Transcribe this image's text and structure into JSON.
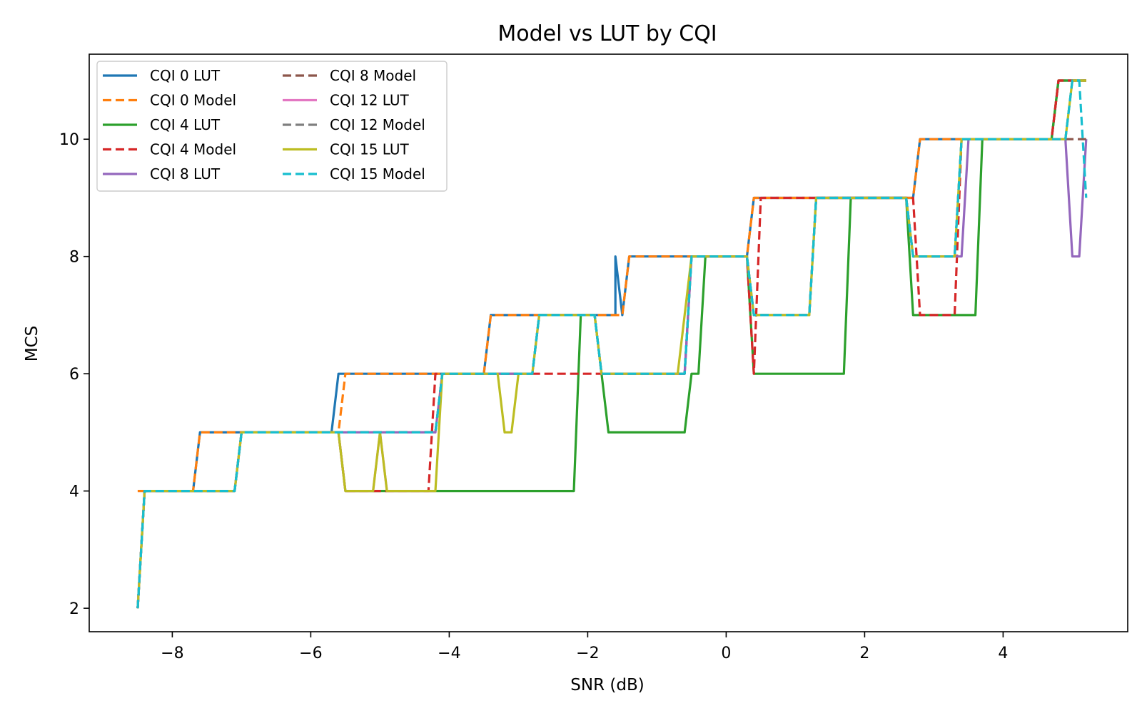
{
  "chart_data": {
    "type": "line",
    "title": "Model vs LUT by CQI",
    "xlabel": "SNR (dB)",
    "ylabel": "MCS",
    "xlim": [
      -9.2,
      5.8
    ],
    "ylim": [
      1.6,
      11.45
    ],
    "xticks": [
      {
        "value": -8,
        "label": "−8"
      },
      {
        "value": -6,
        "label": "−6"
      },
      {
        "value": -4,
        "label": "−4"
      },
      {
        "value": -2,
        "label": "−2"
      },
      {
        "value": 0,
        "label": "0"
      },
      {
        "value": 2,
        "label": "2"
      },
      {
        "value": 4,
        "label": "4"
      }
    ],
    "yticks": [
      {
        "value": 2,
        "label": "2"
      },
      {
        "value": 4,
        "label": "4"
      },
      {
        "value": 6,
        "label": "6"
      },
      {
        "value": 8,
        "label": "8"
      },
      {
        "value": 10,
        "label": "10"
      }
    ],
    "grid": false,
    "legend_position": "upper-left",
    "legend_columns": 2,
    "series": [
      {
        "name": "CQI 0 LUT",
        "color": "#1f77b4",
        "dashed": false,
        "points": [
          [
            -8.5,
            2
          ],
          [
            -8.4,
            4
          ],
          [
            -7.7,
            4
          ],
          [
            -7.6,
            5
          ],
          [
            -5.7,
            5
          ],
          [
            -5.6,
            6
          ],
          [
            -3.5,
            6
          ],
          [
            -3.4,
            7
          ],
          [
            -1.6,
            7
          ],
          [
            -1.6,
            8
          ],
          [
            -1.5,
            7
          ],
          [
            -1.4,
            8
          ],
          [
            0.3,
            8
          ],
          [
            0.4,
            9
          ],
          [
            2.7,
            9
          ],
          [
            2.8,
            10
          ],
          [
            4.7,
            10
          ],
          [
            4.8,
            11
          ],
          [
            5.2,
            11
          ]
        ]
      },
      {
        "name": "CQI 0 Model",
        "color": "#ff7f0e",
        "dashed": true,
        "points": [
          [
            -8.5,
            4
          ],
          [
            -7.7,
            4
          ],
          [
            -7.6,
            5
          ],
          [
            -5.6,
            5
          ],
          [
            -5.5,
            6
          ],
          [
            -3.5,
            6
          ],
          [
            -3.4,
            7
          ],
          [
            -1.5,
            7
          ],
          [
            -1.4,
            8
          ],
          [
            0.3,
            8
          ],
          [
            0.4,
            9
          ],
          [
            2.7,
            9
          ],
          [
            2.8,
            10
          ],
          [
            4.7,
            10
          ],
          [
            4.8,
            11
          ],
          [
            5.2,
            11
          ]
        ]
      },
      {
        "name": "CQI 4 LUT",
        "color": "#2ca02c",
        "dashed": false,
        "points": [
          [
            -8.5,
            2
          ],
          [
            -8.4,
            4
          ],
          [
            -7.1,
            4
          ],
          [
            -7.0,
            5
          ],
          [
            -5.6,
            5
          ],
          [
            -5.5,
            4
          ],
          [
            -4.1,
            4
          ],
          [
            -3.2,
            4
          ],
          [
            -2.2,
            4
          ],
          [
            -2.1,
            7
          ],
          [
            -1.9,
            7
          ],
          [
            -1.8,
            6
          ],
          [
            -1.7,
            5
          ],
          [
            -0.6,
            5
          ],
          [
            -0.5,
            6
          ],
          [
            -0.4,
            6
          ],
          [
            -0.3,
            8
          ],
          [
            0.3,
            8
          ],
          [
            0.4,
            6
          ],
          [
            1.7,
            6
          ],
          [
            1.8,
            9
          ],
          [
            2.6,
            9
          ],
          [
            2.7,
            7
          ],
          [
            3.6,
            7
          ],
          [
            3.7,
            10
          ],
          [
            4.7,
            10
          ],
          [
            4.8,
            11
          ],
          [
            5.2,
            11
          ]
        ]
      },
      {
        "name": "CQI 4 Model",
        "color": "#d62728",
        "dashed": true,
        "points": [
          [
            -8.5,
            2
          ],
          [
            -8.4,
            4
          ],
          [
            -7.1,
            4
          ],
          [
            -7.0,
            5
          ],
          [
            -5.6,
            5
          ],
          [
            -5.5,
            4
          ],
          [
            -4.3,
            4
          ],
          [
            -4.2,
            6
          ],
          [
            -0.6,
            6
          ],
          [
            -0.5,
            8
          ],
          [
            0.3,
            8
          ],
          [
            0.4,
            6
          ],
          [
            0.5,
            9
          ],
          [
            2.7,
            9
          ],
          [
            2.8,
            7
          ],
          [
            3.3,
            7
          ],
          [
            3.4,
            10
          ],
          [
            4.7,
            10
          ],
          [
            4.8,
            11
          ],
          [
            5.2,
            11
          ]
        ]
      },
      {
        "name": "CQI 8 LUT",
        "color": "#9467bd",
        "dashed": false,
        "points": [
          [
            -8.5,
            2
          ],
          [
            -8.4,
            4
          ],
          [
            -7.1,
            4
          ],
          [
            -7.0,
            5
          ],
          [
            -4.2,
            5
          ],
          [
            -4.1,
            6
          ],
          [
            -2.8,
            6
          ],
          [
            -2.7,
            7
          ],
          [
            -1.9,
            7
          ],
          [
            -1.8,
            6
          ],
          [
            -0.6,
            6
          ],
          [
            -0.5,
            8
          ],
          [
            0.3,
            8
          ],
          [
            0.4,
            7
          ],
          [
            1.2,
            7
          ],
          [
            1.3,
            9
          ],
          [
            2.6,
            9
          ],
          [
            2.7,
            8
          ],
          [
            3.4,
            8
          ],
          [
            3.5,
            10
          ],
          [
            4.9,
            10
          ],
          [
            5.0,
            8
          ],
          [
            5.1,
            8
          ],
          [
            5.2,
            10
          ]
        ]
      },
      {
        "name": "CQI 8 Model",
        "color": "#8c564b",
        "dashed": true,
        "points": [
          [
            -8.5,
            2
          ],
          [
            -8.4,
            4
          ],
          [
            -7.1,
            4
          ],
          [
            -7.0,
            5
          ],
          [
            -4.2,
            5
          ],
          [
            -4.1,
            6
          ],
          [
            -2.8,
            6
          ],
          [
            -2.7,
            7
          ],
          [
            -1.9,
            7
          ],
          [
            -1.8,
            6
          ],
          [
            -0.6,
            6
          ],
          [
            -0.5,
            8
          ],
          [
            0.3,
            8
          ],
          [
            0.4,
            7
          ],
          [
            1.2,
            7
          ],
          [
            1.3,
            9
          ],
          [
            2.6,
            9
          ],
          [
            2.7,
            8
          ],
          [
            3.3,
            8
          ],
          [
            3.4,
            10
          ],
          [
            5.2,
            10
          ]
        ]
      },
      {
        "name": "CQI 12 LUT",
        "color": "#e377c2",
        "dashed": false,
        "points": [
          [
            -8.5,
            2
          ],
          [
            -8.4,
            4
          ],
          [
            -7.1,
            4
          ],
          [
            -7.0,
            5
          ],
          [
            -5.6,
            5
          ],
          [
            -5.5,
            4
          ],
          [
            -5.1,
            4
          ],
          [
            -5.0,
            5
          ],
          [
            -4.9,
            4
          ],
          [
            -4.2,
            4
          ]
        ]
      },
      {
        "name": "CQI 12 Model",
        "color": "#7f7f7f",
        "dashed": true,
        "points": [
          [
            -8.5,
            2
          ],
          [
            -8.4,
            4
          ],
          [
            -7.1,
            4
          ],
          [
            -7.0,
            5
          ],
          [
            -4.2,
            5
          ],
          [
            -4.1,
            6
          ],
          [
            -2.8,
            6
          ],
          [
            -2.7,
            7
          ],
          [
            -1.9,
            7
          ],
          [
            -1.8,
            6
          ],
          [
            -0.6,
            6
          ],
          [
            -0.5,
            8
          ],
          [
            0.3,
            8
          ],
          [
            0.4,
            7
          ],
          [
            1.2,
            7
          ],
          [
            1.3,
            9
          ],
          [
            2.6,
            9
          ],
          [
            2.7,
            8
          ],
          [
            3.3,
            8
          ],
          [
            3.4,
            10
          ],
          [
            4.9,
            10
          ],
          [
            5.0,
            11
          ],
          [
            5.2,
            11
          ]
        ]
      },
      {
        "name": "CQI 15 LUT",
        "color": "#bcbd22",
        "dashed": false,
        "points": [
          [
            -8.5,
            2
          ],
          [
            -8.4,
            4
          ],
          [
            -7.1,
            4
          ],
          [
            -7.0,
            5
          ],
          [
            -5.6,
            5
          ],
          [
            -5.5,
            4
          ],
          [
            -5.1,
            4
          ],
          [
            -5.0,
            5
          ],
          [
            -4.9,
            4
          ],
          [
            -4.2,
            4
          ],
          [
            -4.1,
            6
          ],
          [
            -3.3,
            6
          ],
          [
            -3.2,
            5
          ],
          [
            -3.1,
            5
          ],
          [
            -3.0,
            6
          ],
          [
            -2.8,
            6
          ],
          [
            -2.7,
            7
          ],
          [
            -1.9,
            7
          ],
          [
            -1.8,
            6
          ],
          [
            -0.7,
            6
          ],
          [
            -0.6,
            7
          ],
          [
            -0.5,
            8
          ],
          [
            0.3,
            8
          ],
          [
            0.4,
            7
          ],
          [
            1.2,
            7
          ],
          [
            1.3,
            9
          ],
          [
            2.6,
            9
          ],
          [
            2.7,
            8
          ],
          [
            3.3,
            8
          ],
          [
            3.4,
            10
          ],
          [
            4.9,
            10
          ],
          [
            5.0,
            11
          ],
          [
            5.2,
            11
          ]
        ]
      },
      {
        "name": "CQI 15 Model",
        "color": "#17becf",
        "dashed": true,
        "points": [
          [
            -8.5,
            2
          ],
          [
            -8.4,
            4
          ],
          [
            -7.1,
            4
          ],
          [
            -7.0,
            5
          ],
          [
            -4.2,
            5
          ],
          [
            -4.1,
            6
          ],
          [
            -2.8,
            6
          ],
          [
            -2.7,
            7
          ],
          [
            -1.9,
            7
          ],
          [
            -1.8,
            6
          ],
          [
            -0.6,
            6
          ],
          [
            -0.5,
            8
          ],
          [
            0.3,
            8
          ],
          [
            0.4,
            7
          ],
          [
            1.2,
            7
          ],
          [
            1.3,
            9
          ],
          [
            2.6,
            9
          ],
          [
            2.7,
            8
          ],
          [
            3.3,
            8
          ],
          [
            3.4,
            10
          ],
          [
            4.9,
            10
          ],
          [
            5.0,
            11
          ],
          [
            5.1,
            11
          ],
          [
            5.2,
            9
          ]
        ]
      }
    ]
  }
}
